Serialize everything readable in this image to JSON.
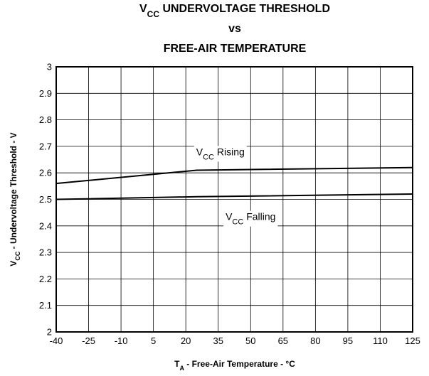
{
  "chart_data": {
    "type": "line",
    "title": [
      [
        {
          "t": "V"
        },
        {
          "t": "CC",
          "sub": true
        },
        {
          "t": " UNDERVOLTAGE THRESHOLD"
        }
      ],
      [
        {
          "t": "vs"
        }
      ],
      [
        {
          "t": "FREE-AIR TEMPERATURE"
        }
      ]
    ],
    "ylabel": [
      {
        "t": "V"
      },
      {
        "t": "CC",
        "sub": true
      },
      {
        "t": " - Undervoltage Threshold - V"
      }
    ],
    "xlabel": [
      {
        "t": "T"
      },
      {
        "t": "A",
        "sub": true
      },
      {
        "t": " - Free-Air Temperature - °C"
      }
    ],
    "xlim": [
      -40,
      125
    ],
    "xticks": [
      -40,
      -25,
      -10,
      5,
      20,
      35,
      50,
      65,
      80,
      95,
      110,
      125
    ],
    "ylim": [
      2,
      3
    ],
    "yticks": [
      2,
      2.1,
      2.2,
      2.3,
      2.4,
      2.5,
      2.6,
      2.7,
      2.8,
      2.9,
      3
    ],
    "grid": true,
    "series": [
      {
        "name": [
          {
            "t": "V"
          },
          {
            "t": "CC",
            "sub": true
          },
          {
            "t": " Rising"
          }
        ],
        "color": "#000000",
        "x": [
          -40,
          25,
          125
        ],
        "values": [
          2.56,
          2.61,
          2.62
        ],
        "label_at": [
          36,
          2.68
        ]
      },
      {
        "name": [
          {
            "t": "V"
          },
          {
            "t": "CC",
            "sub": true
          },
          {
            "t": " Falling"
          }
        ],
        "color": "#000000",
        "x": [
          -40,
          25,
          125
        ],
        "values": [
          2.5,
          2.51,
          2.52
        ],
        "label_at": [
          50,
          2.435
        ]
      }
    ]
  }
}
